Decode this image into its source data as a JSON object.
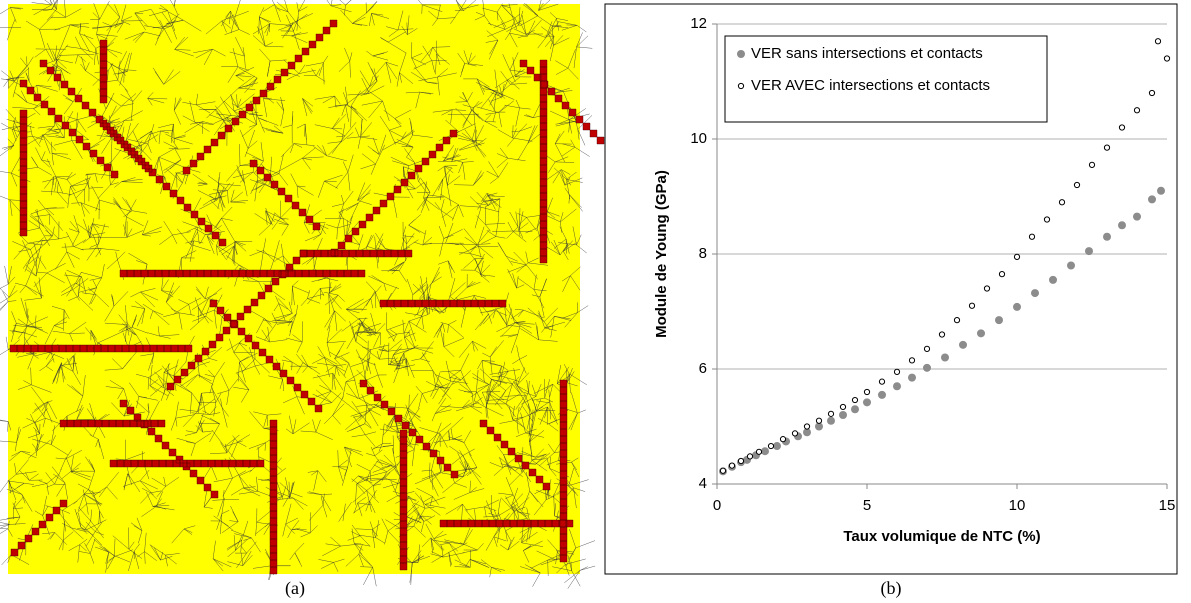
{
  "captions": [
    "(a)",
    "(b)"
  ],
  "chart_data": {
    "type": "scatter",
    "xlabel": "Taux volumique de NTC (%)",
    "ylabel": "Module de Young (GPa)",
    "xlim": [
      0,
      15
    ],
    "xticks": [
      0,
      5,
      10,
      15
    ],
    "ylim": [
      4,
      12
    ],
    "yticks": [
      4,
      6,
      8,
      10,
      12
    ],
    "grid": true,
    "legend": "upper-left",
    "series": [
      {
        "name": "VER sans intersections et contacts",
        "color": "#8c8c8c",
        "marker": "filled",
        "x": [
          0.2,
          0.5,
          0.8,
          1.0,
          1.3,
          1.6,
          2.0,
          2.3,
          2.7,
          3.0,
          3.4,
          3.8,
          4.2,
          4.6,
          5.0,
          5.5,
          6.0,
          6.5,
          7.0,
          7.6,
          8.2,
          8.8,
          9.4,
          10.0,
          10.6,
          11.2,
          11.8,
          12.4,
          13.0,
          13.5,
          14.0,
          14.5,
          14.8
        ],
        "values": [
          4.22,
          4.3,
          4.38,
          4.42,
          4.5,
          4.57,
          4.66,
          4.74,
          4.83,
          4.9,
          5.0,
          5.1,
          5.2,
          5.3,
          5.42,
          5.55,
          5.7,
          5.85,
          6.02,
          6.2,
          6.42,
          6.62,
          6.85,
          7.08,
          7.32,
          7.55,
          7.8,
          8.05,
          8.3,
          8.5,
          8.65,
          8.95,
          9.1
        ]
      },
      {
        "name": "VER AVEC intersections et contacts",
        "color": "#000000",
        "marker": "open",
        "x": [
          0.2,
          0.5,
          0.8,
          1.1,
          1.4,
          1.8,
          2.2,
          2.6,
          3.0,
          3.4,
          3.8,
          4.2,
          4.6,
          5.0,
          5.5,
          6.0,
          6.5,
          7.0,
          7.5,
          8.0,
          8.5,
          9.0,
          9.5,
          10.0,
          10.5,
          11.0,
          11.5,
          12.0,
          12.5,
          13.0,
          13.5,
          14.0,
          14.5,
          14.7,
          15.0
        ],
        "values": [
          4.23,
          4.32,
          4.4,
          4.48,
          4.56,
          4.66,
          4.78,
          4.88,
          5.0,
          5.1,
          5.22,
          5.34,
          5.46,
          5.6,
          5.78,
          5.95,
          6.15,
          6.35,
          6.6,
          6.85,
          7.1,
          7.4,
          7.65,
          7.95,
          8.3,
          8.6,
          8.9,
          9.2,
          9.55,
          9.85,
          10.2,
          10.5,
          10.8,
          11.7,
          11.4
        ]
      }
    ]
  }
}
